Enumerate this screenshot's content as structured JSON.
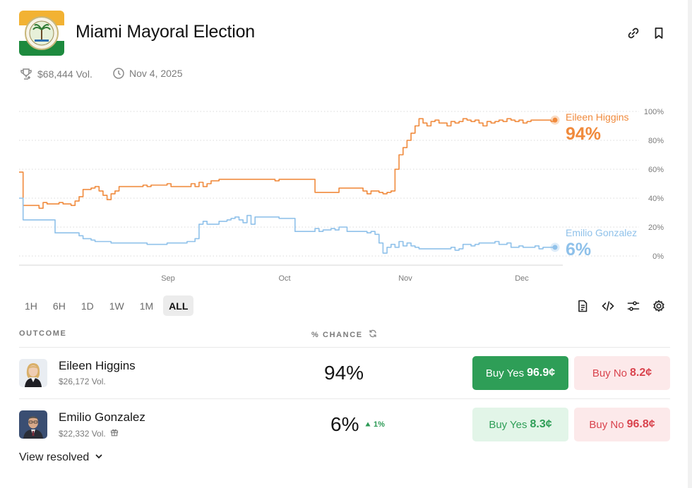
{
  "header": {
    "title": "Miami Mayoral Election",
    "volume": "$68,444 Vol.",
    "date": "Nov 4, 2025",
    "icons": [
      "trophy-icon",
      "clock-icon",
      "link-icon",
      "bookmark-icon"
    ]
  },
  "chart_data": {
    "type": "line",
    "x_ticks": [
      "Sep",
      "Oct",
      "Nov",
      "Dec"
    ],
    "y_ticks": [
      "100%",
      "80%",
      "60%",
      "40%",
      "20%",
      "0%"
    ],
    "ylim": [
      0,
      100
    ],
    "grid": true,
    "series": [
      {
        "name": "Eileen Higgins",
        "color": "#f08a3c",
        "current": "94%",
        "values": [
          58,
          35,
          35,
          35,
          35,
          33,
          37,
          36,
          36,
          36,
          37,
          36,
          36,
          35,
          38,
          41,
          46,
          46,
          47,
          48,
          45,
          42,
          39,
          43,
          45,
          48,
          48,
          48,
          48,
          48,
          48,
          49,
          48,
          49,
          49,
          49,
          49,
          50,
          48,
          48,
          48,
          48,
          48,
          50,
          48,
          51,
          48,
          50,
          52,
          52,
          53,
          53,
          53,
          53,
          53,
          53,
          53,
          53,
          53,
          53,
          53,
          53,
          53,
          53,
          52,
          53,
          53,
          53,
          53,
          53,
          53,
          53,
          53,
          53,
          44,
          44,
          44,
          44,
          44,
          44,
          47,
          47,
          47,
          47,
          47,
          47,
          45,
          43,
          45,
          45,
          44,
          43,
          44,
          45,
          60,
          70,
          75,
          80,
          85,
          90,
          95,
          92,
          90,
          93,
          94,
          92,
          92,
          90,
          93,
          92,
          93,
          95,
          94,
          93,
          94,
          92,
          90,
          93,
          92,
          93,
          94,
          93,
          95,
          94,
          93,
          94,
          92,
          93,
          94,
          94,
          94,
          94,
          94,
          93,
          94
        ]
      },
      {
        "name": "Emilio Gonzalez",
        "color": "#8fc1ea",
        "current": "6%",
        "values": [
          40,
          25,
          25,
          25,
          25,
          25,
          25,
          25,
          25,
          16,
          16,
          16,
          16,
          16,
          16,
          14,
          12,
          12,
          11,
          10,
          10,
          10,
          10,
          9,
          9,
          9,
          9,
          9,
          9,
          9,
          9,
          9,
          8,
          8,
          8,
          8,
          8,
          9,
          9,
          9,
          9,
          9,
          10,
          10,
          12,
          22,
          24,
          22,
          22,
          22,
          24,
          24,
          25,
          26,
          27,
          25,
          23,
          28,
          22,
          27,
          27,
          27,
          27,
          27,
          27,
          26,
          26,
          26,
          26,
          17,
          17,
          17,
          17,
          17,
          19,
          17,
          18,
          18,
          19,
          18,
          20,
          20,
          17,
          17,
          17,
          17,
          17,
          16,
          17,
          15,
          9,
          2,
          6,
          8,
          6,
          10,
          7,
          9,
          7,
          6,
          5,
          5,
          5,
          5,
          5,
          5,
          5,
          5,
          6,
          4,
          5,
          8,
          8,
          7,
          8,
          9,
          9,
          9,
          9,
          10,
          8,
          8,
          9,
          6,
          6,
          7,
          6,
          6,
          6,
          7,
          5,
          6,
          6,
          6,
          6
        ]
      }
    ]
  },
  "ranges": {
    "items": [
      "1H",
      "6H",
      "1D",
      "1W",
      "1M",
      "ALL"
    ],
    "active": "ALL"
  },
  "table": {
    "col_outcome": "OUTCOME",
    "col_chance": "% CHANCE",
    "rows": [
      {
        "name": "Eileen Higgins",
        "vol": "$26,172 Vol.",
        "pct": "94%",
        "change": "",
        "yes_label": "Buy Yes",
        "yes_price": "96.9¢",
        "no_label": "Buy No",
        "no_price": "8.2¢"
      },
      {
        "name": "Emilio Gonzalez",
        "vol": "$22,332 Vol.",
        "pct": "6%",
        "change": "1%",
        "yes_label": "Buy Yes",
        "yes_price": "8.3¢",
        "no_label": "Buy No",
        "no_price": "96.8¢"
      }
    ]
  },
  "footer": {
    "view_resolved": "View resolved"
  }
}
